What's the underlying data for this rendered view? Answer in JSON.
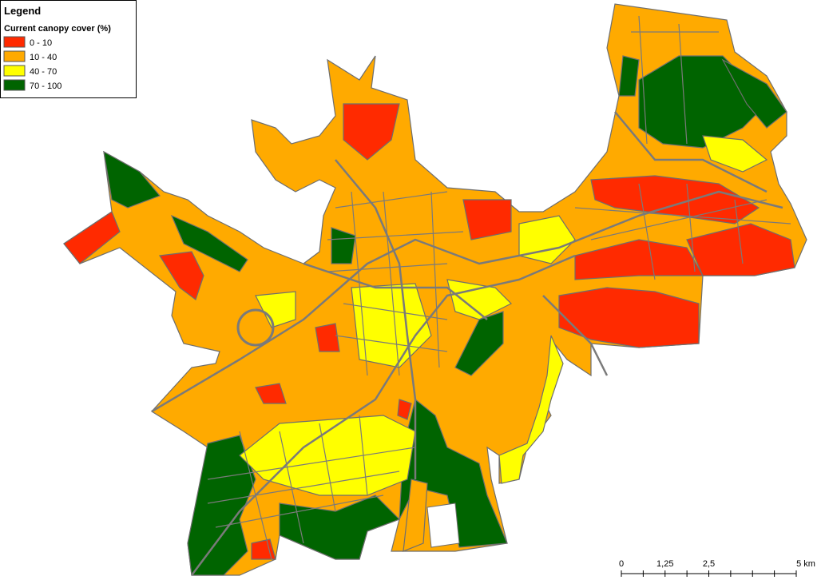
{
  "legend": {
    "title": "Legend",
    "subtitle": "Current canopy cover (%)",
    "items": [
      {
        "label": "0 - 10",
        "color": "#ff2a00"
      },
      {
        "label": "10 - 40",
        "color": "#ffaa00"
      },
      {
        "label": "40 - 70",
        "color": "#ffff00"
      },
      {
        "label": "70 - 100",
        "color": "#006400"
      }
    ]
  },
  "scale_bar": {
    "labels": [
      "0",
      "1,25",
      "2,5",
      "5 km"
    ]
  }
}
